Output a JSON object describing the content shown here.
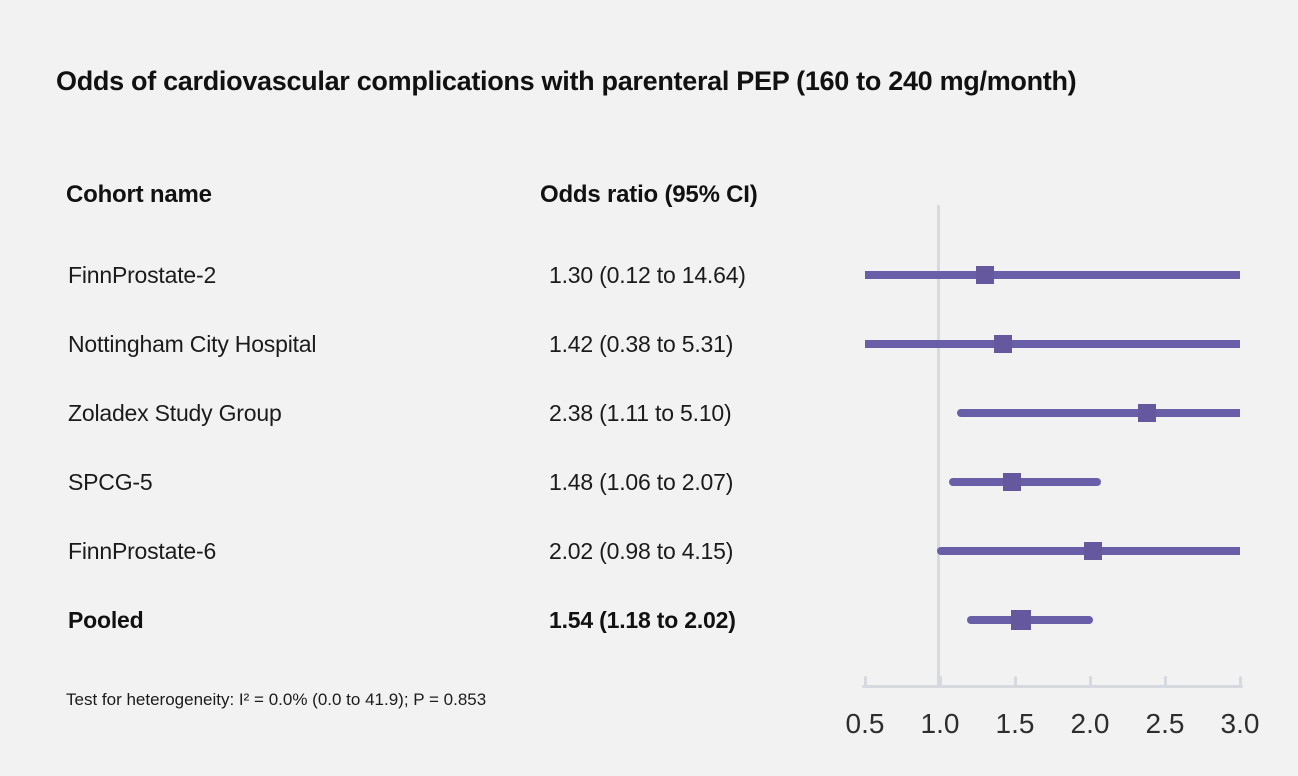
{
  "title": "Odds of cardiovascular complications with parenteral PEP (160 to 240 mg/month)",
  "table": {
    "cohort_header": "Cohort name",
    "or_header": "Odds ratio (95% CI)",
    "rows": [
      {
        "name": "FinnProstate-2",
        "or_text": "1.30 (0.12 to 14.64)"
      },
      {
        "name": "Nottingham City Hospital",
        "or_text": "1.42 (0.38 to 5.31)"
      },
      {
        "name": "Zoladex Study Group",
        "or_text": "2.38 (1.11 to 5.10)"
      },
      {
        "name": "SPCG-5",
        "or_text": "1.48 (1.06 to 2.07)"
      },
      {
        "name": "FinnProstate-6",
        "or_text": "2.02 (0.98 to 4.15)"
      },
      {
        "name": "Pooled",
        "or_text": "1.54 (1.18 to 2.02)"
      }
    ]
  },
  "footnote": "Test for heterogeneity: I² = 0.0% (0.0 to 41.9); P = 0.853",
  "chart_data": {
    "type": "scatter",
    "subtype": "forest-plot",
    "title": "Odds of cardiovascular complications with parenteral PEP (160 to 240 mg/month)",
    "xlabel": "",
    "ylabel": "",
    "xlim": [
      0.5,
      3.0
    ],
    "reference_line_x": 1.0,
    "grid": false,
    "ticks": [
      0.5,
      1.0,
      1.5,
      2.0,
      2.5,
      3.0
    ],
    "tick_labels": [
      "0.5",
      "1.0",
      "1.5",
      "2.0",
      "2.5",
      "3.0"
    ],
    "series": [
      {
        "label": "FinnProstate-2",
        "or": 1.3,
        "ci_low": 0.12,
        "ci_high": 14.64,
        "pooled": false
      },
      {
        "label": "Nottingham City Hospital",
        "or": 1.42,
        "ci_low": 0.38,
        "ci_high": 5.31,
        "pooled": false
      },
      {
        "label": "Zoladex Study Group",
        "or": 2.38,
        "ci_low": 1.11,
        "ci_high": 5.1,
        "pooled": false
      },
      {
        "label": "SPCG-5",
        "or": 1.48,
        "ci_low": 1.06,
        "ci_high": 2.07,
        "pooled": false
      },
      {
        "label": "FinnProstate-6",
        "or": 2.02,
        "ci_low": 0.98,
        "ci_high": 4.15,
        "pooled": false
      },
      {
        "label": "Pooled",
        "or": 1.54,
        "ci_low": 1.18,
        "ci_high": 2.02,
        "pooled": true
      }
    ]
  },
  "colors": {
    "background": "#f2f2f2",
    "marker_purple": "#675ca6",
    "axis_gray": "#d6d9e0",
    "text": "#1b1b1b"
  }
}
